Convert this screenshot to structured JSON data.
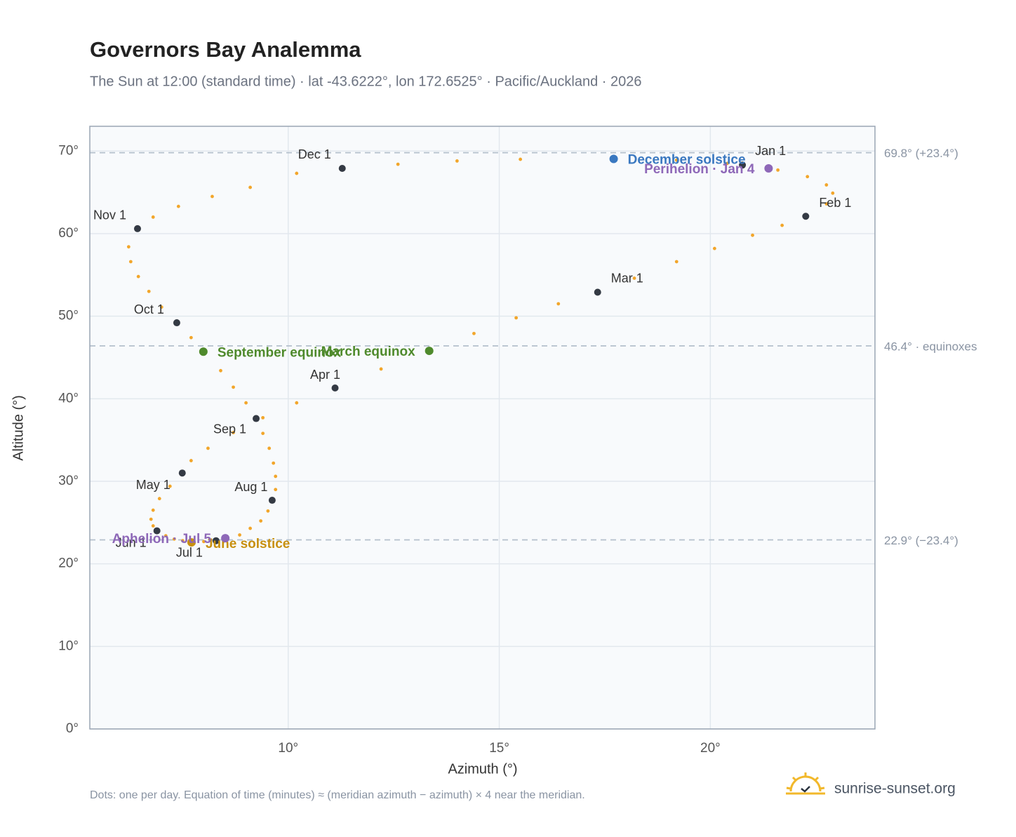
{
  "chart_data": {
    "type": "scatter",
    "title": "Governors Bay Analemma",
    "subtitle": "The Sun at 12:00 (standard time) · lat -43.6222°, lon 172.6525° · Pacific/Auckland · 2026",
    "xlabel": "Azimuth (°)",
    "ylabel": "Altitude (°)",
    "note": "Dots: one per day. Equation of time (minutes) ≈ (meridian azimuth − azimuth) × 4 near the meridian.",
    "source": "sunrise-sunset.org",
    "xlim": [
      5.3,
      23.9
    ],
    "ylim": [
      0,
      73
    ],
    "xticks": [
      {
        "value": 10,
        "label": "10°"
      },
      {
        "value": 15,
        "label": "15°"
      },
      {
        "value": 20,
        "label": "20°"
      }
    ],
    "yticks": [
      {
        "value": 0,
        "label": "0°"
      },
      {
        "value": 10,
        "label": "10°"
      },
      {
        "value": 20,
        "label": "20°"
      },
      {
        "value": 30,
        "label": "30°"
      },
      {
        "value": 40,
        "label": "40°"
      },
      {
        "value": 50,
        "label": "50°"
      },
      {
        "value": 60,
        "label": "60°"
      },
      {
        "value": 70,
        "label": "70°"
      }
    ],
    "grid": true,
    "reference_lines": [
      {
        "value": 69.8,
        "label": "69.8° (+23.4°)"
      },
      {
        "value": 46.4,
        "label": "46.4° · equinoxes"
      },
      {
        "value": 22.9,
        "label": "22.9° (−23.4°)"
      }
    ],
    "dots": {
      "color": "#f2a62b",
      "x": [
        20.76,
        21.6,
        22.3,
        22.75,
        22.9,
        22.75,
        22.26,
        21.7,
        21.0,
        20.1,
        19.2,
        18.2,
        17.33,
        16.4,
        15.4,
        14.4,
        13.34,
        12.2,
        11.11,
        10.2,
        9.4,
        8.7,
        8.1,
        7.7,
        7.49,
        7.2,
        6.95,
        6.8,
        6.75,
        6.8,
        6.89,
        7.1,
        7.3,
        7.5,
        7.75,
        8.0,
        8.29,
        8.55,
        8.85,
        9.1,
        9.35,
        9.52,
        9.62,
        9.7,
        9.7,
        9.65,
        9.55,
        9.4,
        9.24,
        9.0,
        8.7,
        8.4,
        8.0,
        7.7,
        7.36,
        7.0,
        6.7,
        6.45,
        6.27,
        6.22,
        6.43,
        6.8,
        7.4,
        8.2,
        9.1,
        10.2,
        11.28,
        12.6,
        14.0,
        15.5,
        17.71,
        19.2,
        20.4
      ],
      "y": [
        68.3,
        67.7,
        66.9,
        65.9,
        64.9,
        63.6,
        62.1,
        61.0,
        59.8,
        58.2,
        56.6,
        54.6,
        52.9,
        51.5,
        49.8,
        47.9,
        45.8,
        43.6,
        41.3,
        39.5,
        37.7,
        35.9,
        34.0,
        32.5,
        31.0,
        29.4,
        27.9,
        26.5,
        25.4,
        24.6,
        24.0,
        23.4,
        23.0,
        22.8,
        22.7,
        22.7,
        22.8,
        23.1,
        23.5,
        24.3,
        25.2,
        26.4,
        27.7,
        29.0,
        30.6,
        32.2,
        34.0,
        35.8,
        37.6,
        39.5,
        41.4,
        43.4,
        45.5,
        47.4,
        49.2,
        51.1,
        53.0,
        54.8,
        56.6,
        58.4,
        60.6,
        62.0,
        63.3,
        64.5,
        65.6,
        67.3,
        67.9,
        68.4,
        68.8,
        69.0,
        69.05,
        68.9,
        68.5
      ]
    },
    "months": {
      "color": "#343a44",
      "labels": [
        "Jan 1",
        "Feb 1",
        "Mar 1",
        "Apr 1",
        "May 1",
        "Jun 1",
        "Jul 1",
        "Aug 1",
        "Sep 1",
        "Oct 1",
        "Nov 1",
        "Dec 1"
      ],
      "x": [
        20.76,
        22.26,
        17.33,
        11.11,
        7.49,
        6.89,
        8.29,
        9.62,
        9.24,
        7.36,
        6.43,
        11.28
      ],
      "y": [
        68.3,
        62.1,
        52.9,
        41.3,
        31.0,
        24.0,
        22.8,
        27.7,
        37.6,
        49.2,
        60.6,
        67.9
      ]
    },
    "events": [
      {
        "label": "December solstice",
        "color": "#3a78c0",
        "x": 17.71,
        "y": 69.05
      },
      {
        "label": "Perihelion · Jan 4",
        "color": "#8e68b8",
        "x": 21.38,
        "y": 67.9
      },
      {
        "label": "March equinox",
        "color": "#4f8a2c",
        "x": 13.34,
        "y": 45.8
      },
      {
        "label": "September equinox",
        "color": "#4f8a2c",
        "x": 7.99,
        "y": 45.7
      },
      {
        "label": "June solstice",
        "color": "#c8900f",
        "x": 7.71,
        "y": 22.6
      },
      {
        "label": "Aphelion · Jul 5",
        "color": "#8e68b8",
        "x": 8.51,
        "y": 23.1
      }
    ]
  }
}
